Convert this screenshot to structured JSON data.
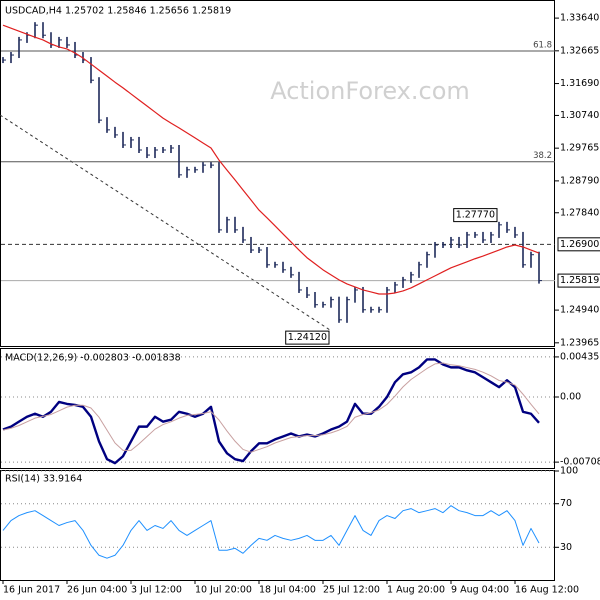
{
  "chart_data": [
    {
      "type": "price",
      "title": "USDCAD,H4  1.25702 1.25846 1.25656 1.25819",
      "watermark": "ActionForex.com",
      "categories": [
        "16 Jun 2017",
        null,
        null,
        null,
        null,
        null,
        null,
        null,
        "26 Jun 04:00",
        null,
        null,
        null,
        null,
        null,
        null,
        null,
        "3 Jul 12:00",
        null,
        null,
        null,
        null,
        null,
        null,
        null,
        "10 Jul 20:00",
        null,
        null,
        null,
        null,
        null,
        null,
        null,
        "18 Jul 04:00",
        null,
        null,
        null,
        null,
        null,
        null,
        null,
        "25 Jul 12:00",
        null,
        null,
        null,
        null,
        null,
        null,
        null,
        "1 Aug 20:00",
        null,
        null,
        null,
        null,
        null,
        null,
        null,
        "9 Aug 04:00",
        null,
        null,
        null,
        null,
        null,
        null,
        null,
        "16 Aug 12:00",
        null,
        null,
        null
      ],
      "series": [
        {
          "color": "#1e2a5a",
          "width": 1.6,
          "values": [
            1.3239,
            1.3254,
            1.3299,
            1.3313,
            1.3343,
            1.3313,
            1.3284,
            1.3299,
            1.3284,
            1.3254,
            1.3239,
            1.3179,
            1.306,
            1.3031,
            1.3016,
            1.2986,
            1.3001,
            1.2971,
            1.2956,
            1.2971,
            1.2971,
            1.2977,
            1.2897,
            1.2912,
            1.2912,
            1.2926,
            1.2926,
            1.2733,
            1.2763,
            1.2733,
            1.2703,
            1.2673,
            1.2673,
            1.2629,
            1.2629,
            1.2614,
            1.2599,
            1.2554,
            1.2539,
            1.251,
            1.251,
            1.2525,
            1.2465,
            1.2525,
            1.2554,
            1.2495,
            1.2495,
            1.2495,
            1.2554,
            1.2569,
            1.2584,
            1.2599,
            1.2629,
            1.2659,
            1.2688,
            1.2688,
            1.2703,
            1.2688,
            1.2718,
            1.2718,
            1.2703,
            1.2718,
            1.2748,
            1.2733,
            1.2718,
            1.2629,
            1.2659,
            1.25819
          ]
        },
        {
          "color": "#e02020",
          "width": 1.2,
          "values": [
            1.3343,
            1.3334,
            1.3325,
            1.3316,
            1.3307,
            1.3299,
            1.3287,
            1.3278,
            1.3272,
            1.326,
            1.3245,
            1.3227,
            1.3209,
            1.3191,
            1.3173,
            1.3156,
            1.3138,
            1.312,
            1.3102,
            1.3084,
            1.3066,
            1.3051,
            1.3037,
            1.3022,
            1.3007,
            1.2992,
            1.2977,
            1.2941,
            1.2911,
            1.2882,
            1.2852,
            1.2822,
            1.2792,
            1.2769,
            1.2745,
            1.2721,
            1.2697,
            1.2673,
            1.265,
            1.2632,
            1.2614,
            1.2599,
            1.2584,
            1.2572,
            1.2563,
            1.2554,
            1.2548,
            1.2542,
            1.2542,
            1.2545,
            1.2551,
            1.256,
            1.2572,
            1.2584,
            1.2596,
            1.2608,
            1.262,
            1.2629,
            1.2638,
            1.2647,
            1.2655,
            1.2664,
            1.2673,
            1.2682,
            1.2688,
            1.2682,
            1.2673,
            1.2664
          ]
        }
      ],
      "ylim": [
        1.239,
        1.3409
      ],
      "yticks": [
        {
          "value": 1.3364,
          "label": "1.33640"
        },
        1.32665,
        {
          "value": 1.3169,
          "label": "1.31690"
        },
        {
          "value": 1.3074,
          "label": "1.30740"
        },
        1.29765,
        {
          "value": 1.2879,
          "label": "1.28790"
        },
        {
          "value": 1.2784,
          "label": "1.27840"
        },
        {
          "value": 1.2494,
          "label": "1.24940"
        },
        1.23965
      ],
      "levels": [
        {
          "value": 1.3266,
          "label": "61.8"
        },
        {
          "value": 1.2936,
          "label": "38.2"
        }
      ],
      "price_lines": [
        {
          "value": 1.269,
          "label": "1.26900",
          "style": "dashed"
        },
        {
          "value": 1.25819,
          "label": "1.25819",
          "style": "solid"
        }
      ],
      "annotations": [
        {
          "text": "1.27770",
          "value": 1.2777,
          "index": 62
        },
        {
          "text": "1.24120",
          "value": 1.2412,
          "index": 41
        }
      ]
    },
    {
      "type": "line",
      "title": "MACD(12,26,9) -0.002803 -0.001838",
      "series": [
        {
          "color": "#000080",
          "width": 2.4,
          "values": [
            -0.00354,
            -0.00322,
            -0.00268,
            -0.00215,
            -0.00182,
            -0.00215,
            -0.00161,
            -0.00054,
            -0.00075,
            -0.00086,
            -0.00107,
            -0.00215,
            -0.00483,
            -0.00676,
            -0.00719,
            -0.00644,
            -0.00483,
            -0.00322,
            -0.00322,
            -0.00215,
            -0.00268,
            -0.00247,
            -0.00161,
            -0.00182,
            -0.00215,
            -0.00182,
            -0.00107,
            -0.00483,
            -0.00612,
            -0.00676,
            -0.00697,
            -0.0059,
            -0.00504,
            -0.00504,
            -0.00461,
            -0.00429,
            -0.00397,
            -0.00429,
            -0.00408,
            -0.00429,
            -0.00397,
            -0.00354,
            -0.00322,
            -0.00268,
            -0.00075,
            -0.00182,
            -0.00182,
            -0.00107,
            0,
            0.00161,
            0.00247,
            0.00268,
            0.00322,
            0.00408,
            0.00408,
            0.00354,
            0.00322,
            0.00322,
            0.0029,
            0.00268,
            0.00215,
            0.00161,
            0.00107,
            0.00182,
            0.00107,
            -0.00161,
            -0.00182,
            -0.002803
          ]
        },
        {
          "color": "#c8a0a0",
          "width": 1,
          "values": [
            -0.0036,
            -0.0034,
            -0.0031,
            -0.0027,
            -0.0023,
            -0.0021,
            -0.0019,
            -0.0015,
            -0.0011,
            -0.0009,
            -0.0009,
            -0.0012,
            -0.0022,
            -0.0036,
            -0.005,
            -0.0058,
            -0.0058,
            -0.0051,
            -0.0043,
            -0.0035,
            -0.003,
            -0.0027,
            -0.0023,
            -0.002,
            -0.0019,
            -0.0018,
            -0.0016,
            -0.0025,
            -0.0037,
            -0.0048,
            -0.0057,
            -0.006,
            -0.0057,
            -0.0054,
            -0.005,
            -0.0047,
            -0.0044,
            -0.0043,
            -0.0042,
            -0.0042,
            -0.0041,
            -0.0039,
            -0.0036,
            -0.0032,
            -0.0022,
            -0.0019,
            -0.0017,
            -0.0014,
            -0.0008,
            0.0001,
            0.0011,
            0.0019,
            0.0025,
            0.0031,
            0.0036,
            0.0037,
            0.0035,
            0.0034,
            0.0032,
            0.003,
            0.0027,
            0.0023,
            0.0018,
            0.0016,
            0.0013,
            0.0003,
            -0.0008,
            -0.001838
          ]
        }
      ],
      "ylim": [
        -0.00772,
        0.00511
      ],
      "yticks": [
        0.004357,
        {
          "value": 0,
          "label": "0.00"
        },
        -0.007081
      ],
      "grid": true
    },
    {
      "type": "line",
      "title": "RSI(14) 33.9164",
      "series": [
        {
          "color": "#1e90ff",
          "width": 1,
          "values": [
            45.5,
            54.5,
            59.1,
            61.8,
            63.6,
            59.1,
            54.5,
            50,
            52.7,
            54.5,
            45.5,
            31.8,
            22.7,
            20,
            22.7,
            31.8,
            45.5,
            54.5,
            45.5,
            50,
            47.3,
            54.5,
            45.5,
            40.9,
            45.5,
            50,
            54.5,
            27.3,
            27.3,
            29.1,
            24.5,
            31.8,
            38.2,
            36.4,
            40.9,
            38.2,
            36.4,
            38.2,
            40.9,
            36.4,
            36.4,
            40.9,
            31.8,
            45.5,
            59.1,
            45.5,
            40.9,
            54.5,
            59.1,
            56.4,
            63.6,
            65.5,
            61.8,
            63.6,
            65.5,
            61.8,
            68.2,
            63.6,
            61.8,
            59.1,
            59.1,
            63.6,
            59.1,
            63.6,
            54.5,
            31.8,
            47.3,
            33.9164
          ]
        }
      ],
      "ylim": [
        0,
        100
      ],
      "yticks": [
        100,
        70,
        30
      ],
      "grid": true
    }
  ]
}
